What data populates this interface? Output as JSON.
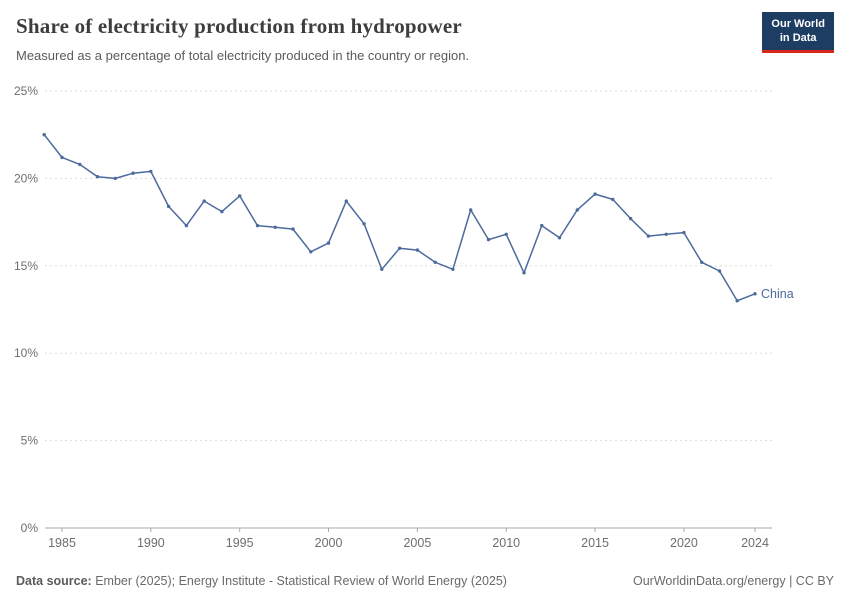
{
  "header": {
    "title": "Share of electricity production from hydropower",
    "subtitle": "Measured as a percentage of total electricity produced in the country or region.",
    "logo_line1": "Our World",
    "logo_line2": "in Data",
    "logo_bg_color": "#1d3d63",
    "logo_accent_color": "#d7281f"
  },
  "chart_data": {
    "type": "line",
    "title": "Share of electricity production from hydropower",
    "xlabel": "",
    "ylabel": "",
    "xlim": [
      1984,
      2025
    ],
    "ylim": [
      0,
      25
    ],
    "grid": true,
    "legend_position": "end-of-line",
    "y_ticks": [
      0,
      5,
      10,
      15,
      20,
      25
    ],
    "y_tick_labels": [
      "0%",
      "5%",
      "10%",
      "15%",
      "20%",
      "25%"
    ],
    "x_ticks": [
      1985,
      1990,
      1995,
      2000,
      2005,
      2010,
      2015,
      2020,
      2024
    ],
    "series": [
      {
        "name": "China",
        "color": "#4c6a9c",
        "x": [
          1984,
          1985,
          1986,
          1987,
          1988,
          1989,
          1990,
          1991,
          1992,
          1993,
          1994,
          1995,
          1996,
          1997,
          1998,
          1999,
          2000,
          2001,
          2002,
          2003,
          2004,
          2005,
          2006,
          2007,
          2008,
          2009,
          2010,
          2011,
          2012,
          2013,
          2014,
          2015,
          2016,
          2017,
          2018,
          2019,
          2020,
          2021,
          2022,
          2023,
          2024
        ],
        "values": [
          22.5,
          21.2,
          20.8,
          20.1,
          20.0,
          20.3,
          20.4,
          18.4,
          17.3,
          18.7,
          18.1,
          19.0,
          17.3,
          17.2,
          17.1,
          15.8,
          16.3,
          18.7,
          17.4,
          14.8,
          16.0,
          15.9,
          15.2,
          14.8,
          18.2,
          16.5,
          16.8,
          14.6,
          17.3,
          16.6,
          18.2,
          19.1,
          18.8,
          17.7,
          16.7,
          16.8,
          16.9,
          15.2,
          14.7,
          13.0,
          13.4
        ]
      }
    ]
  },
  "footer": {
    "source_label": "Data source:",
    "source_text": " Ember (2025); Energy Institute - Statistical Review of World Energy (2025)",
    "credit": "OurWorldinData.org/energy | CC BY"
  }
}
